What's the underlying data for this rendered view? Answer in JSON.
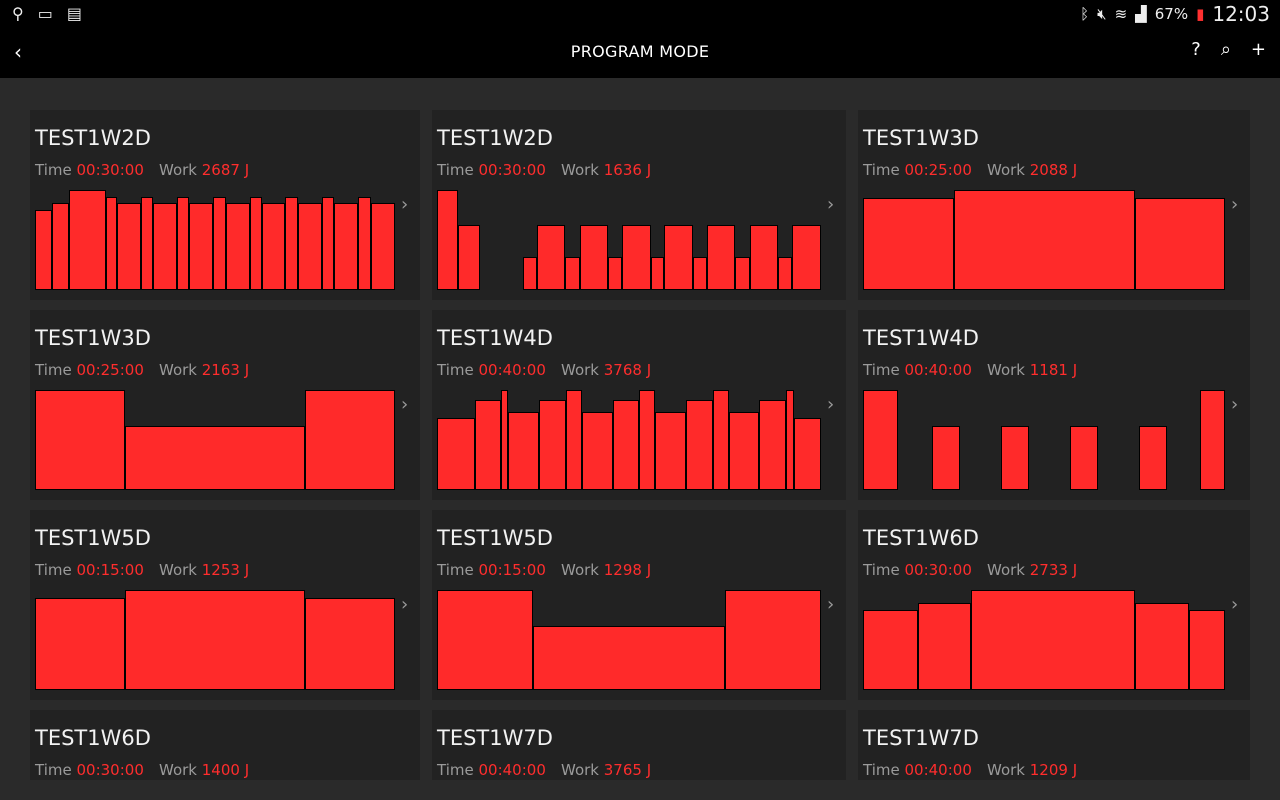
{
  "status_bar": {
    "left_icons": [
      "usb-icon",
      "cast-icon",
      "sim-off-icon"
    ],
    "right_icons": [
      "bluetooth-icon",
      "mute-icon",
      "wifi-icon",
      "signal-icon"
    ],
    "battery": "67%",
    "time": "12:03"
  },
  "app_bar": {
    "title": "PROGRAM MODE",
    "back": "‹",
    "help": "?",
    "search": "⌕",
    "add": "+"
  },
  "labels": {
    "time": "Time",
    "work": "Work"
  },
  "colors": {
    "accent": "#ff2a2a",
    "card": "#222222",
    "background": "#2a2a2a"
  },
  "programs": [
    {
      "name": "TEST1W2D",
      "time": "00:30:00",
      "work": "2687 J",
      "profile": [
        [
          17,
          0.8
        ],
        [
          17,
          0.87
        ],
        [
          37,
          1
        ],
        [
          12,
          0.93
        ],
        [
          24,
          0.87
        ],
        [
          12,
          0.93
        ],
        [
          24,
          0.87
        ],
        [
          12,
          0.93
        ],
        [
          24,
          0.87
        ],
        [
          13,
          0.93
        ],
        [
          24,
          0.87
        ],
        [
          12,
          0.93
        ],
        [
          24,
          0.87
        ],
        [
          13,
          0.93
        ],
        [
          24,
          0.87
        ],
        [
          12,
          0.93
        ],
        [
          24,
          0.87
        ],
        [
          13,
          0.93
        ],
        [
          24,
          0.87
        ]
      ]
    },
    {
      "name": "TEST1W2D",
      "time": "00:30:00",
      "work": "1636 J",
      "profile": [
        [
          19,
          1
        ],
        [
          20,
          0.65
        ],
        [
          39,
          0
        ],
        [
          13,
          0.33
        ],
        [
          26,
          0.65
        ],
        [
          13,
          0.33
        ],
        [
          26,
          0.65
        ],
        [
          13,
          0.33
        ],
        [
          26,
          0.65
        ],
        [
          12,
          0.33
        ],
        [
          26,
          0.65
        ],
        [
          13,
          0.33
        ],
        [
          26,
          0.65
        ],
        [
          13,
          0.33
        ],
        [
          26,
          0.65
        ],
        [
          13,
          0.33
        ],
        [
          26,
          0.65
        ]
      ]
    },
    {
      "name": "TEST1W3D",
      "time": "00:25:00",
      "work": "2088 J",
      "profile": [
        [
          91,
          0.92
        ],
        [
          183,
          1
        ],
        [
          90,
          0.92
        ]
      ]
    },
    {
      "name": "TEST1W3D",
      "time": "00:25:00",
      "work": "2163 J",
      "profile": [
        [
          91,
          1
        ],
        [
          183,
          0.64
        ],
        [
          91,
          1
        ]
      ]
    },
    {
      "name": "TEST1W4D",
      "time": "00:40:00",
      "work": "3768 J",
      "profile": [
        [
          38,
          0.72
        ],
        [
          26,
          0.9
        ],
        [
          8,
          1
        ],
        [
          31,
          0.78
        ],
        [
          27,
          0.9
        ],
        [
          16,
          1
        ],
        [
          31,
          0.78
        ],
        [
          27,
          0.9
        ],
        [
          16,
          1
        ],
        [
          31,
          0.78
        ],
        [
          27,
          0.9
        ],
        [
          16,
          1
        ],
        [
          31,
          0.78
        ],
        [
          27,
          0.9
        ],
        [
          8,
          1
        ],
        [
          27,
          0.72
        ]
      ]
    },
    {
      "name": "TEST1W4D",
      "time": "00:40:00",
      "work": "1181 J",
      "profile": [
        [
          35,
          1
        ],
        [
          34,
          0
        ],
        [
          29,
          0.64
        ],
        [
          41,
          0
        ],
        [
          28,
          0.64
        ],
        [
          41,
          0
        ],
        [
          28,
          0.64
        ],
        [
          42,
          0
        ],
        [
          28,
          0.64
        ],
        [
          33,
          0
        ],
        [
          25,
          1
        ]
      ]
    },
    {
      "name": "TEST1W5D",
      "time": "00:15:00",
      "work": "1253 J",
      "profile": [
        [
          91,
          0.92
        ],
        [
          183,
          1
        ],
        [
          91,
          0.92
        ]
      ]
    },
    {
      "name": "TEST1W5D",
      "time": "00:15:00",
      "work": "1298 J",
      "profile": [
        [
          97,
          1
        ],
        [
          195,
          0.64
        ],
        [
          97,
          1
        ]
      ]
    },
    {
      "name": "TEST1W6D",
      "time": "00:30:00",
      "work": "2733 J",
      "profile": [
        [
          55,
          0.8
        ],
        [
          54,
          0.87
        ],
        [
          165,
          1
        ],
        [
          54,
          0.87
        ],
        [
          36,
          0.8
        ]
      ]
    },
    {
      "name": "TEST1W6D",
      "time": "00:30:00",
      "work": "1400 J",
      "profile": []
    },
    {
      "name": "TEST1W7D",
      "time": "00:40:00",
      "work": "3765 J",
      "profile": []
    },
    {
      "name": "TEST1W7D",
      "time": "00:40:00",
      "work": "1209 J",
      "profile": []
    }
  ]
}
